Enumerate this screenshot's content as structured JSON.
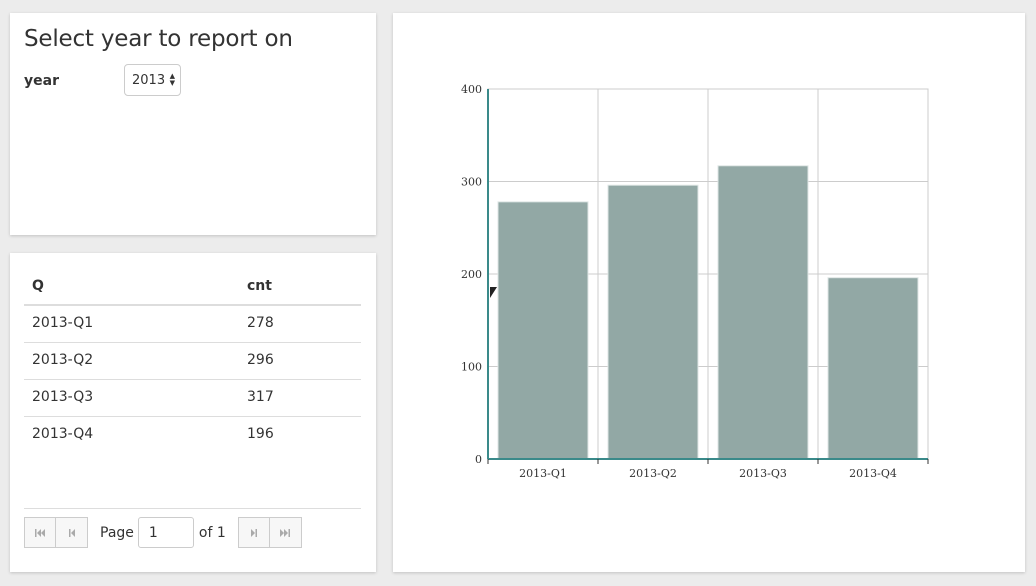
{
  "select_panel": {
    "title": "Select year to report on",
    "year_label": "year",
    "year_value": "2013"
  },
  "table": {
    "headers": [
      "Q",
      "cnt"
    ],
    "rows": [
      {
        "q": "2013-Q1",
        "cnt": "278"
      },
      {
        "q": "2013-Q2",
        "cnt": "296"
      },
      {
        "q": "2013-Q3",
        "cnt": "317"
      },
      {
        "q": "2013-Q4",
        "cnt": "196"
      }
    ],
    "pager": {
      "page_label": "Page",
      "page_value": "1",
      "of_label": "of 1",
      "first_icon": "first-page-icon",
      "prev_icon": "previous-page-icon",
      "next_icon": "next-page-icon",
      "last_icon": "last-page-icon"
    }
  },
  "chart_data": {
    "type": "bar",
    "categories": [
      "2013-Q1",
      "2013-Q2",
      "2013-Q3",
      "2013-Q4"
    ],
    "values": [
      278,
      296,
      317,
      196
    ],
    "title": "",
    "xlabel": "",
    "ylabel": "",
    "ylim": [
      0,
      400
    ],
    "yticks": [
      0,
      100,
      200,
      300,
      400
    ],
    "grid": true,
    "bar_color": "#92a8a5",
    "axis_color": "#3a8a8a"
  }
}
